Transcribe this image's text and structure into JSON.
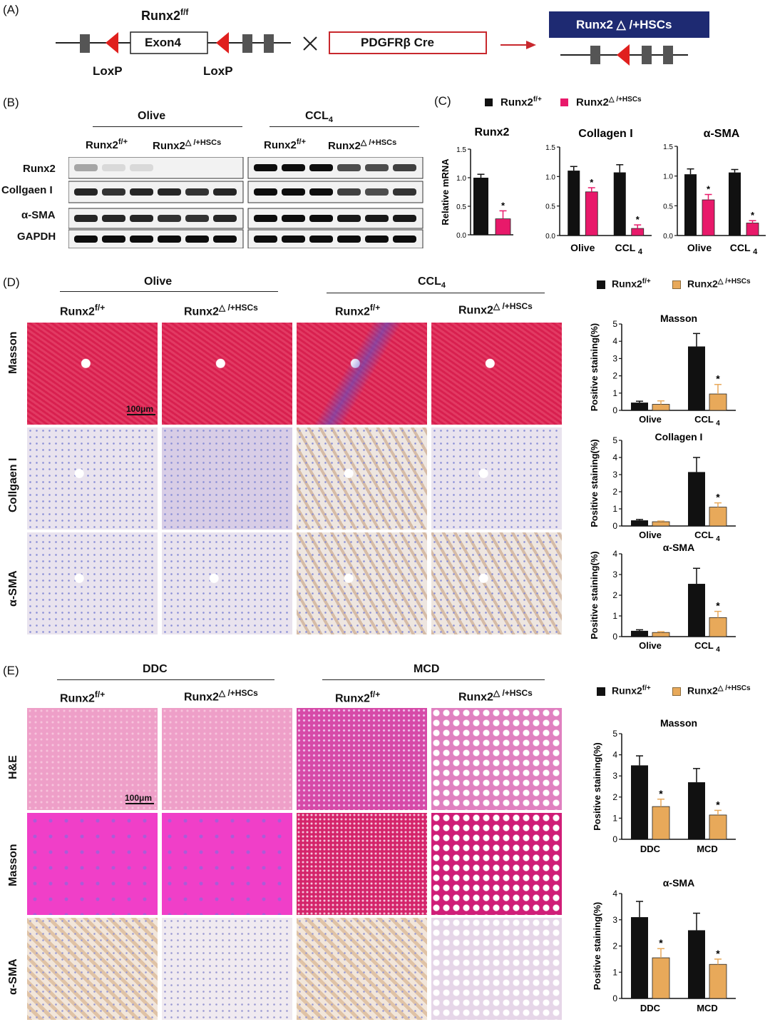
{
  "panels": {
    "A": "(A)",
    "B": "(B)",
    "C": "(C)",
    "D": "(D)",
    "E": "(E)"
  },
  "panelA": {
    "gene_label": "Runx2",
    "gene_sup": "f/f",
    "exon_label": "Exon4",
    "loxp_left": "LoxP",
    "loxp_right": "LoxP",
    "cross_symbol": "×",
    "cre_label": "PDGFRβ Cre",
    "result_label": "Runx2 △ /+HSCs",
    "colors": {
      "loxp": "#e0201e",
      "cre_border": "#c8282d",
      "result_bg": "#1e2a72",
      "arrow": "#c8282d",
      "exon_block": "#555555"
    }
  },
  "panelB": {
    "group_olive": "Olive",
    "group_ccl4": "CCL",
    "group_ccl4_sub": "4",
    "geno_wt": "Runx2",
    "geno_wt_sup": "f/+",
    "geno_ko": "Runx2",
    "geno_ko_sup": "△ /+HSCs",
    "rows": [
      "Runx2",
      "Collgaen I",
      "α-SMA",
      "GAPDH"
    ]
  },
  "panelC": {
    "legend_wt": "Runx2",
    "legend_wt_sup": "f/+",
    "legend_ko": "Runx2",
    "legend_ko_sup": "△ /+HSCs",
    "ylabel": "Relative mRNA",
    "colors": {
      "wt": "#111111",
      "ko": "#e8196a"
    }
  },
  "panelD": {
    "group_olive": "Olive",
    "group_ccl4": "CCL",
    "group_ccl4_sub": "4",
    "geno_wt": "Runx2",
    "geno_wt_sup": "f/+",
    "geno_ko": "Runx2",
    "geno_ko_sup": "△ /+HSCs",
    "rows": [
      "Masson",
      "Collgaen I",
      "α-SMA"
    ],
    "scale_bar": "100μm",
    "legend_wt": "Runx2",
    "legend_wt_sup": "f/+",
    "legend_ko": "Runx2",
    "legend_ko_sup": "△ /+HSCs",
    "colors": {
      "wt": "#111111",
      "ko": "#e8a95a"
    }
  },
  "panelE": {
    "group_ddc": "DDC",
    "group_mcd": "MCD",
    "geno_wt": "Runx2",
    "geno_wt_sup": "f/+",
    "geno_ko": "Runx2",
    "geno_ko_sup": "△ /+HSCs",
    "rows": [
      "H&E",
      "Masson",
      "α-SMA"
    ],
    "scale_bar": "100μm",
    "legend_wt": "Runx2",
    "legend_wt_sup": "f/+",
    "legend_ko": "Runx2",
    "legend_ko_sup": "△ /+HSCs",
    "colors": {
      "wt": "#111111",
      "ko": "#e8a95a"
    }
  },
  "chart_data": [
    {
      "id": "C-runx2",
      "type": "bar",
      "title": "Runx2",
      "ylabel": "Relative mRNA",
      "categories": [
        ""
      ],
      "ylim": [
        0,
        1.5
      ],
      "yticks": [
        "0.0",
        "0.5",
        "1.0",
        "1.5"
      ],
      "series": [
        {
          "name": "Runx2 f/+",
          "values": [
            1.0
          ],
          "err": [
            0.06
          ]
        },
        {
          "name": "Runx2 △/+HSCs",
          "values": [
            0.28
          ],
          "err": [
            0.14
          ]
        }
      ],
      "sig": [
        "*"
      ]
    },
    {
      "id": "C-col1",
      "type": "bar",
      "title": "Collagen I",
      "categories": [
        "Olive",
        "CCL4"
      ],
      "ylim": [
        0,
        1.5
      ],
      "yticks": [
        "0.0",
        "0.5",
        "1.0",
        "1.5"
      ],
      "series": [
        {
          "name": "Runx2 f/+",
          "values": [
            1.1,
            1.07
          ],
          "err": [
            0.07,
            0.13
          ]
        },
        {
          "name": "Runx2 △/+HSCs",
          "values": [
            0.74,
            0.12
          ],
          "err": [
            0.07,
            0.06
          ]
        }
      ],
      "sig": [
        "*",
        "*"
      ]
    },
    {
      "id": "C-sma",
      "type": "bar",
      "title": "α-SMA",
      "categories": [
        "Olive",
        "CCL4"
      ],
      "ylim": [
        0,
        1.5
      ],
      "yticks": [
        "0.0",
        "0.5",
        "1.0",
        "1.5"
      ],
      "series": [
        {
          "name": "Runx2 f/+",
          "values": [
            1.03,
            1.06
          ],
          "err": [
            0.09,
            0.05
          ]
        },
        {
          "name": "Runx2 △/+HSCs",
          "values": [
            0.6,
            0.21
          ],
          "err": [
            0.09,
            0.04
          ]
        }
      ],
      "sig": [
        "*",
        "*"
      ]
    },
    {
      "id": "D-masson",
      "type": "bar",
      "title": "Masson",
      "ylabel": "Positive staining(%)",
      "categories": [
        "Olive",
        "CCL4"
      ],
      "ylim": [
        0,
        5
      ],
      "yticks": [
        "0",
        "1",
        "2",
        "3",
        "4",
        "5"
      ],
      "series": [
        {
          "name": "Runx2 f/+",
          "values": [
            0.45,
            3.7
          ],
          "err": [
            0.08,
            0.75
          ]
        },
        {
          "name": "Runx2 △/+HSCs",
          "values": [
            0.35,
            0.95
          ],
          "err": [
            0.2,
            0.55
          ]
        }
      ],
      "sig": [
        "",
        "*"
      ]
    },
    {
      "id": "D-col1",
      "type": "bar",
      "title": "Collagen I",
      "ylabel": "Positive staining(%)",
      "categories": [
        "Olive",
        "CCL4"
      ],
      "ylim": [
        0,
        5
      ],
      "yticks": [
        "0",
        "1",
        "2",
        "3",
        "4",
        "5"
      ],
      "series": [
        {
          "name": "Runx2 f/+",
          "values": [
            0.33,
            3.15
          ],
          "err": [
            0.05,
            0.85
          ]
        },
        {
          "name": "Runx2 △/+HSCs",
          "values": [
            0.25,
            1.1
          ],
          "err": [
            0.04,
            0.25
          ]
        }
      ],
      "sig": [
        "",
        "*"
      ]
    },
    {
      "id": "D-sma",
      "type": "bar",
      "title": "α-SMA",
      "ylabel": "Positive staining(%)",
      "categories": [
        "Olive",
        "CCL4"
      ],
      "ylim": [
        0,
        4
      ],
      "yticks": [
        "0",
        "1",
        "2",
        "3",
        "4"
      ],
      "series": [
        {
          "name": "Runx2 f/+",
          "values": [
            0.28,
            2.55
          ],
          "err": [
            0.05,
            0.75
          ]
        },
        {
          "name": "Runx2 △/+HSCs",
          "values": [
            0.2,
            0.92
          ],
          "err": [
            0.04,
            0.3
          ]
        }
      ],
      "sig": [
        "",
        "*"
      ]
    },
    {
      "id": "E-masson",
      "type": "bar",
      "title": "Masson",
      "ylabel": "Positive staining(%)",
      "categories": [
        "DDC",
        "MCD"
      ],
      "ylim": [
        0,
        5
      ],
      "yticks": [
        "0",
        "1",
        "2",
        "3",
        "4",
        "5"
      ],
      "series": [
        {
          "name": "Runx2 f/+",
          "values": [
            3.5,
            2.7
          ],
          "err": [
            0.45,
            0.65
          ]
        },
        {
          "name": "Runx2 △/+HSCs",
          "values": [
            1.55,
            1.15
          ],
          "err": [
            0.35,
            0.22
          ]
        }
      ],
      "sig": [
        "*",
        "*"
      ]
    },
    {
      "id": "E-sma",
      "type": "bar",
      "title": "α-SMA",
      "ylabel": "Positive staining(%)",
      "categories": [
        "DDC",
        "MCD"
      ],
      "ylim": [
        0,
        4
      ],
      "yticks": [
        "0",
        "1",
        "2",
        "3",
        "4"
      ],
      "series": [
        {
          "name": "Runx2 f/+",
          "values": [
            3.1,
            2.6
          ],
          "err": [
            0.6,
            0.65
          ]
        },
        {
          "name": "Runx2 △/+HSCs",
          "values": [
            1.55,
            1.3
          ],
          "err": [
            0.35,
            0.2
          ]
        }
      ],
      "sig": [
        "*",
        "*"
      ]
    }
  ]
}
